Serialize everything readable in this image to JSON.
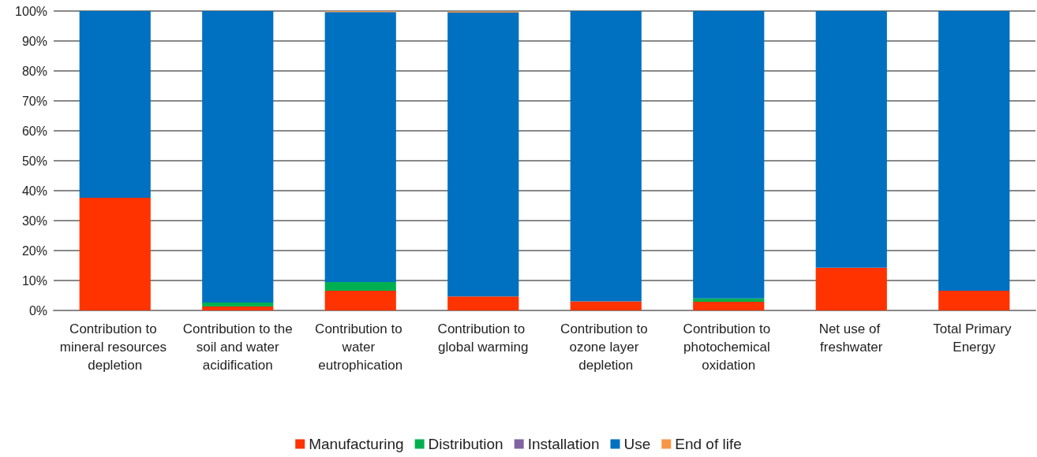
{
  "chart_data": {
    "type": "bar",
    "stacked": true,
    "categories": [
      "Contribution to mineral resources depletion",
      "Contribution to the soil and water acidification",
      "Contribution to water eutrophication",
      "Contribution to global warming",
      "Contribution to ozone layer depletion",
      "Contribution to photochemical oxidation",
      "Net use of freshwater",
      "Total Primary Energy"
    ],
    "series": [
      {
        "name": "Manufacturing",
        "color": "#ff3300",
        "values": [
          37.6,
          1.3,
          6.6,
          4.7,
          3.0,
          2.9,
          14.3,
          6.6
        ]
      },
      {
        "name": "Distribution",
        "color": "#00b050",
        "values": [
          0,
          1.3,
          2.9,
          null,
          0,
          1.1,
          0,
          0
        ]
      },
      {
        "name": "Installation",
        "color": "#8064a2",
        "values": [
          0,
          0,
          0,
          0,
          0,
          0,
          0,
          0
        ]
      },
      {
        "name": "Use",
        "color": "#0070c0",
        "values": [
          62.4,
          97.4,
          90.2,
          94.8,
          97.0,
          96.0,
          85.7,
          93.4
        ]
      },
      {
        "name": "End of life",
        "color": "#f79646",
        "values": [
          0,
          0,
          0.3,
          0.3,
          0,
          0,
          0,
          0
        ]
      }
    ],
    "ylim": [
      0,
      100
    ],
    "yticks": [
      {
        "value": 0,
        "label": "0%"
      },
      {
        "value": 10,
        "label": "10%"
      },
      {
        "value": 20,
        "label": "20%"
      },
      {
        "value": 30,
        "label": "30%"
      },
      {
        "value": 40,
        "label": "40%"
      },
      {
        "value": 50,
        "label": "50%"
      },
      {
        "value": 60,
        "label": "60%"
      },
      {
        "value": 70,
        "label": "70%"
      },
      {
        "value": 80,
        "label": "80%"
      },
      {
        "value": 90,
        "label": "90%"
      },
      {
        "value": 100,
        "label": "100%"
      }
    ],
    "grid": "y",
    "legend": "bottom"
  }
}
